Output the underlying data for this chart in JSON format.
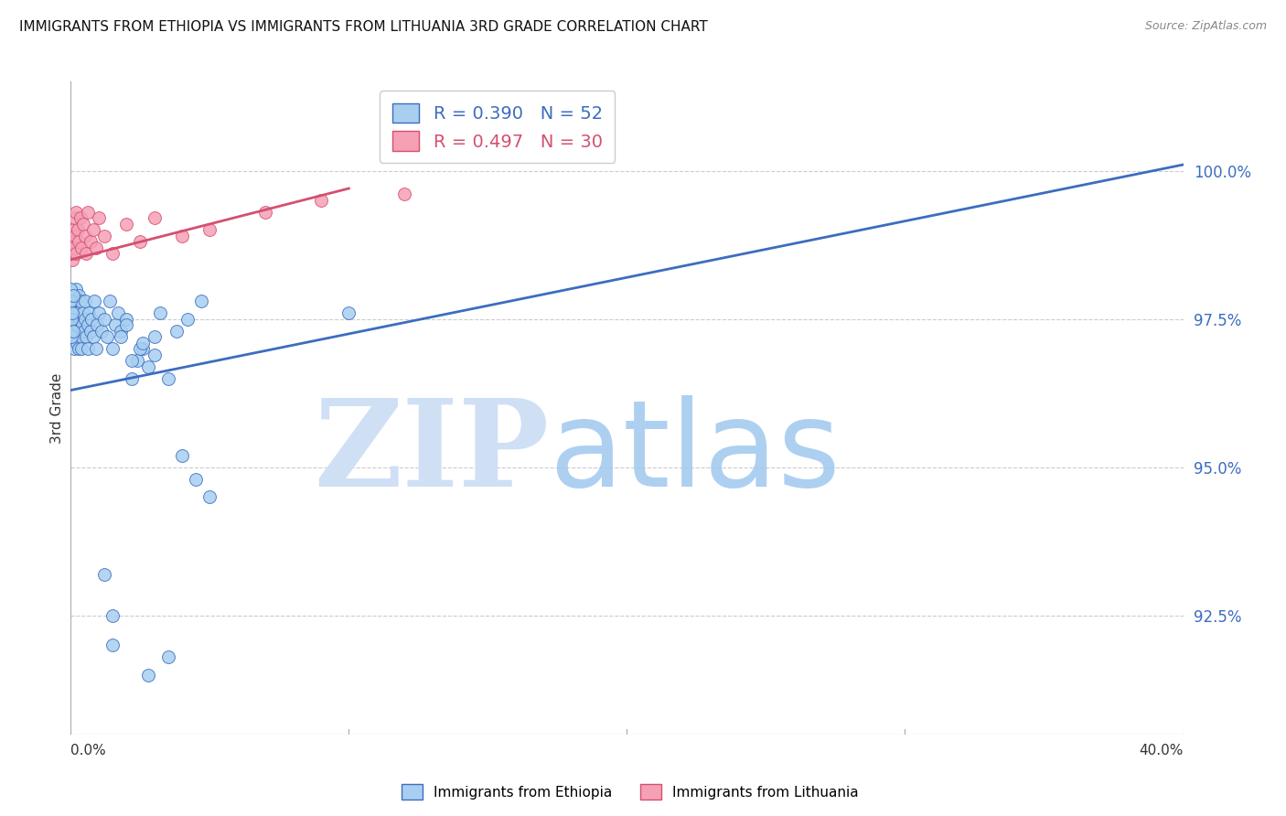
{
  "title": "IMMIGRANTS FROM ETHIOPIA VS IMMIGRANTS FROM LITHUANIA 3RD GRADE CORRELATION CHART",
  "source": "Source: ZipAtlas.com",
  "ylabel": "3rd Grade",
  "xlim": [
    0.0,
    40.0
  ],
  "ylim": [
    90.5,
    101.5
  ],
  "ytick_vals": [
    92.5,
    95.0,
    97.5,
    100.0
  ],
  "color_ethiopia": "#a8cff0",
  "color_lithuania": "#f5a0b5",
  "color_line_ethiopia": "#3c6dbf",
  "color_line_lithuania": "#d45070",
  "legend_text1": "R = 0.390   N = 52",
  "legend_text2": "R = 0.497   N = 30",
  "bottom_label1": "Immigrants from Ethiopia",
  "bottom_label2": "Immigrants from Lithuania",
  "ethiopia_x": [
    0.05,
    0.08,
    0.1,
    0.12,
    0.15,
    0.18,
    0.2,
    0.22,
    0.25,
    0.28,
    0.3,
    0.32,
    0.35,
    0.38,
    0.4,
    0.42,
    0.45,
    0.48,
    0.5,
    0.52,
    0.55,
    0.6,
    0.62,
    0.65,
    0.7,
    0.75,
    0.8,
    0.85,
    0.9,
    0.95,
    1.0,
    1.1,
    1.2,
    1.3,
    1.4,
    1.5,
    1.6,
    1.7,
    1.8,
    2.0,
    2.2,
    2.4,
    2.6,
    2.8,
    3.0,
    3.5,
    4.0,
    4.5,
    5.0,
    1.2,
    1.5,
    10.0
  ],
  "ethiopia_y": [
    97.5,
    97.2,
    97.8,
    97.0,
    97.3,
    98.0,
    97.6,
    97.1,
    97.4,
    97.9,
    97.0,
    97.5,
    97.8,
    97.2,
    97.0,
    97.4,
    97.6,
    97.3,
    97.5,
    97.8,
    97.2,
    97.0,
    97.4,
    97.6,
    97.3,
    97.5,
    97.2,
    97.8,
    97.0,
    97.4,
    97.6,
    97.3,
    97.5,
    97.2,
    97.8,
    97.0,
    97.4,
    97.6,
    97.3,
    97.5,
    96.5,
    96.8,
    97.0,
    96.7,
    96.9,
    96.5,
    95.2,
    94.8,
    94.5,
    93.2,
    92.5,
    97.6
  ],
  "ethiopia_x2": [
    0.0,
    0.0,
    0.02,
    0.03,
    0.05,
    0.08,
    0.1,
    1.8,
    2.0,
    2.5,
    3.2,
    3.8,
    4.2,
    4.7,
    1.5,
    2.8,
    3.5,
    2.2,
    2.6,
    3.0
  ],
  "ethiopia_y2": [
    97.8,
    98.0,
    97.5,
    97.2,
    97.6,
    97.9,
    97.3,
    97.2,
    97.4,
    97.0,
    97.6,
    97.3,
    97.5,
    97.8,
    92.0,
    91.5,
    91.8,
    96.8,
    97.1,
    97.2
  ],
  "lithuania_x": [
    0.0,
    0.05,
    0.08,
    0.1,
    0.12,
    0.15,
    0.18,
    0.2,
    0.25,
    0.3,
    0.35,
    0.4,
    0.45,
    0.5,
    0.55,
    0.6,
    0.7,
    0.8,
    0.9,
    1.0,
    1.2,
    1.5,
    2.0,
    2.5,
    3.0,
    4.0,
    5.0,
    7.0,
    9.0,
    12.0
  ],
  "lithuania_y": [
    98.8,
    98.5,
    99.0,
    98.7,
    99.2,
    98.9,
    99.3,
    98.6,
    99.0,
    98.8,
    99.2,
    98.7,
    99.1,
    98.9,
    98.6,
    99.3,
    98.8,
    99.0,
    98.7,
    99.2,
    98.9,
    98.6,
    99.1,
    98.8,
    99.2,
    98.9,
    99.0,
    99.3,
    99.5,
    99.6
  ],
  "eth_trend_x": [
    0.0,
    40.0
  ],
  "eth_trend_y": [
    96.3,
    100.1
  ],
  "lit_trend_x": [
    0.0,
    10.0
  ],
  "lit_trend_y": [
    98.5,
    99.7
  ]
}
